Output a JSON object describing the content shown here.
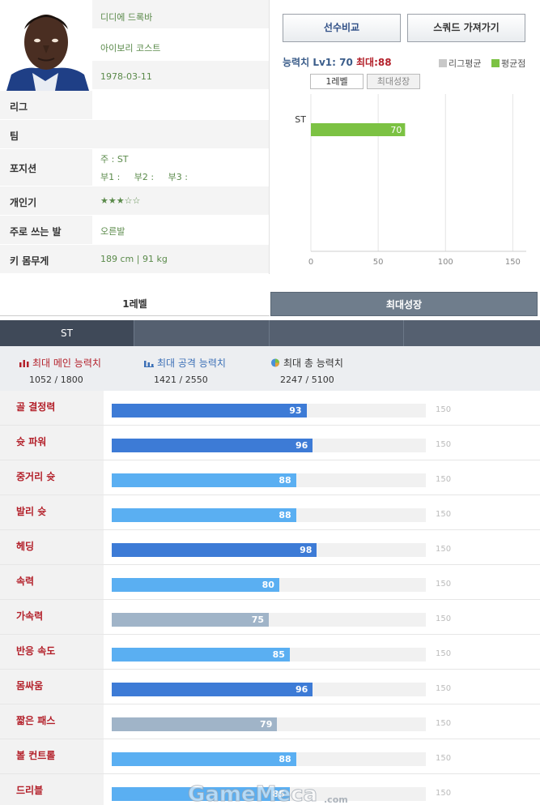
{
  "player": {
    "name": "디디에 드록바",
    "country": "아이보리 코스트",
    "birth": "1978-03-11"
  },
  "info_rows": [
    {
      "label": "리그",
      "value": ""
    },
    {
      "label": "팀",
      "value": ""
    },
    {
      "label": "포지션",
      "value": "주 : ST",
      "value2": "부1 :     부2 :     부3 :"
    },
    {
      "label": "개인기",
      "value": "★★★☆☆"
    },
    {
      "label": "주로 쓰는 발",
      "value": "오른발"
    },
    {
      "label": "키 몸무게",
      "value": "189 cm | 91 kg"
    }
  ],
  "buttons": {
    "compare": "선수비교",
    "squad": "스쿼드 가져가기"
  },
  "ability": {
    "label": "능력치",
    "lv": "Lv1: 70",
    "max": "최대:88",
    "legend_league": "리그평균",
    "legend_avg": "평균점",
    "tab_level1": "1레벨",
    "tab_max": "최대성장",
    "colors": {
      "league": "#c8c8c8",
      "avg": "#7cc243"
    }
  },
  "chart_data": {
    "type": "bar",
    "orientation": "horizontal",
    "categories": [
      "ST"
    ],
    "series": [
      {
        "values": [
          70
        ]
      }
    ],
    "xlim": [
      0,
      160
    ],
    "xticks": [
      "0",
      "50",
      "100",
      "150"
    ],
    "grid": true
  },
  "tabs": {
    "level1": "1레벨",
    "max": "최대성장"
  },
  "position_bar": {
    "active": "ST"
  },
  "summary": [
    {
      "title": "최대 메인 능력치",
      "value": "1052 / 1800",
      "icon": "bar-chart-icon",
      "color": "#b3202a"
    },
    {
      "title": "최대 공격 능력치",
      "value": "1421 / 2550",
      "icon": "column-chart-icon",
      "color": "#3b6fb6"
    },
    {
      "title": "최대 총 능력치",
      "value": "2247 / 5100",
      "icon": "pie-chart-icon",
      "color": "#333333"
    }
  ],
  "attributes": [
    {
      "label": "골 결정력",
      "value": 93,
      "tone": "dark"
    },
    {
      "label": "슛 파워",
      "value": 96,
      "tone": "dark"
    },
    {
      "label": "중거리 슛",
      "value": 88,
      "tone": "light"
    },
    {
      "label": "발리 슛",
      "value": 88,
      "tone": "light"
    },
    {
      "label": "헤딩",
      "value": 98,
      "tone": "dark"
    },
    {
      "label": "속력",
      "value": 80,
      "tone": "light"
    },
    {
      "label": "가속력",
      "value": 75,
      "tone": "gray"
    },
    {
      "label": "반응 속도",
      "value": 85,
      "tone": "light"
    },
    {
      "label": "몸싸움",
      "value": 96,
      "tone": "dark"
    },
    {
      "label": "짧은 패스",
      "value": 79,
      "tone": "gray"
    },
    {
      "label": "볼 컨트롤",
      "value": 88,
      "tone": "light"
    },
    {
      "label": "드리블",
      "value": 85,
      "tone": "light"
    }
  ],
  "attribute_max": 150,
  "attribute_max_label": "150",
  "tone_colors": {
    "dark": "#3d7bd6",
    "light": "#5aaff2",
    "gray": "#a0b4c8"
  },
  "watermark": "GameMeca.com"
}
